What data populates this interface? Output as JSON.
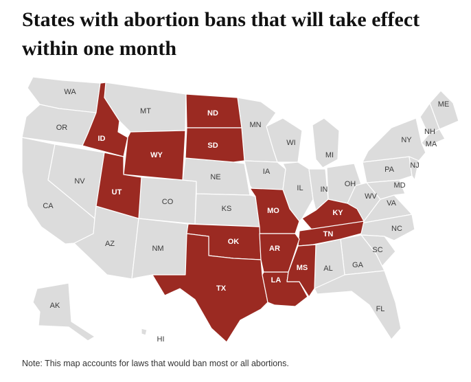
{
  "title": "States with abortion bans that will take effect within one month",
  "note": "Note: This map accounts for laws that would ban most or all abortions.",
  "colors": {
    "ban": "#9b2a22",
    "other": "#dcdcdc",
    "border": "#ffffff",
    "label_ban": "#ffffff",
    "label_other": "#3a3a3a"
  },
  "map_data": {
    "states_with_ban": [
      "ID",
      "WY",
      "UT",
      "ND",
      "SD",
      "MO",
      "KY",
      "TN",
      "OK",
      "AR",
      "TX",
      "LA",
      "MS"
    ],
    "states_without_ban": [
      "WA",
      "OR",
      "CA",
      "NV",
      "MT",
      "CO",
      "AZ",
      "NM",
      "NE",
      "KS",
      "MN",
      "IA",
      "WI",
      "IL",
      "MI",
      "IN",
      "OH",
      "WV",
      "VA",
      "PA",
      "NY",
      "ME",
      "NH",
      "MA",
      "NJ",
      "MD",
      "NC",
      "SC",
      "GA",
      "AL",
      "FL",
      "AK",
      "HI"
    ]
  },
  "labels": {
    "WA": "WA",
    "OR": "OR",
    "CA": "CA",
    "NV": "NV",
    "ID": "ID",
    "MT": "MT",
    "WY": "WY",
    "UT": "UT",
    "CO": "CO",
    "AZ": "AZ",
    "NM": "NM",
    "ND": "ND",
    "SD": "SD",
    "NE": "NE",
    "KS": "KS",
    "OK": "OK",
    "TX": "TX",
    "MN": "MN",
    "IA": "IA",
    "MO": "MO",
    "AR": "AR",
    "LA": "LA",
    "WI": "WI",
    "IL": "IL",
    "MI": "MI",
    "IN": "IN",
    "OH": "OH",
    "KY": "KY",
    "TN": "TN",
    "MS": "MS",
    "AL": "AL",
    "GA": "GA",
    "FL": "FL",
    "SC": "SC",
    "NC": "NC",
    "VA": "VA",
    "WV": "WV",
    "MD": "MD",
    "PA": "PA",
    "NJ": "NJ",
    "NY": "NY",
    "MA": "MA",
    "NH": "NH",
    "ME": "ME",
    "AK": "AK",
    "HI": "HI"
  }
}
